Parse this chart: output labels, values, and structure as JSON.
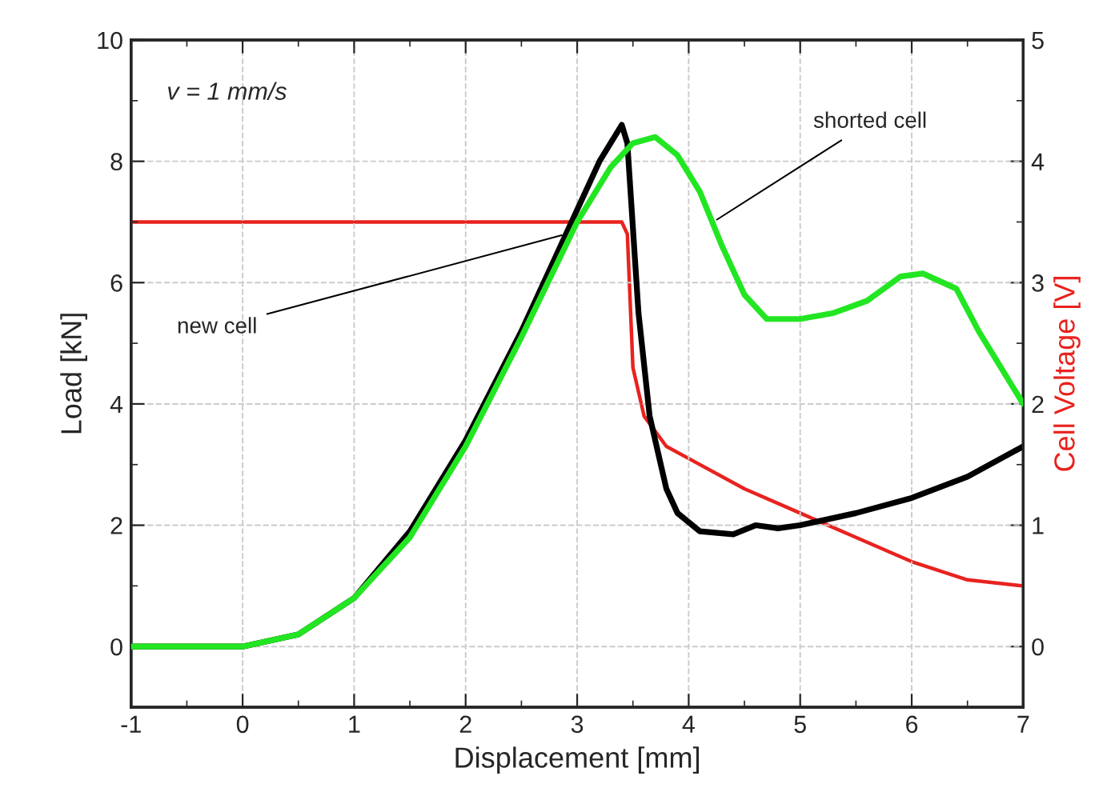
{
  "chart_data": {
    "type": "line",
    "xlabel": "Displacement [mm]",
    "ylabel": "Load [kN]",
    "y2label": "Cell Voltage [V]",
    "xlim": [
      -1,
      7
    ],
    "xticks": [
      -1,
      0,
      1,
      2,
      3,
      4,
      5,
      6,
      7
    ],
    "ylim": [
      -1,
      10
    ],
    "yticks": [
      0,
      2,
      4,
      6,
      8,
      10
    ],
    "y2lim": [
      -0.5,
      5
    ],
    "y2ticks": [
      0,
      1,
      2,
      3,
      4,
      5
    ],
    "grid": true,
    "marker": "none",
    "line_style": "solid",
    "annotations": [
      "v = 1 mm/s",
      {
        "text": "new cell",
        "x": 2.9,
        "y": 6.8
      },
      {
        "text": "shorted cell",
        "x": 4.22,
        "y": 7.0
      }
    ],
    "series": [
      {
        "color": "#000000",
        "x": [
          -1,
          0,
          0.5,
          1,
          1.5,
          2,
          2.5,
          3,
          3.2,
          3.4,
          3.45,
          3.55,
          3.65,
          3.8,
          3.9,
          4.1,
          4.4,
          4.6,
          4.8,
          5.0,
          5.5,
          6.0,
          6.5,
          7.0
        ],
        "values": [
          0,
          0,
          0.2,
          0.8,
          1.9,
          3.4,
          5.2,
          7.2,
          8.0,
          8.6,
          8.3,
          5.5,
          3.8,
          2.6,
          2.2,
          1.9,
          1.85,
          2.0,
          1.95,
          2.0,
          2.2,
          2.45,
          2.8,
          3.3
        ]
      },
      {
        "color": "#22e622",
        "x": [
          -1,
          0,
          0.5,
          1,
          1.5,
          2,
          2.5,
          3,
          3.3,
          3.5,
          3.7,
          3.9,
          4.1,
          4.3,
          4.5,
          4.7,
          5.0,
          5.3,
          5.6,
          5.9,
          6.1,
          6.4,
          6.6,
          6.8,
          7.0
        ],
        "values": [
          0,
          0,
          0.2,
          0.8,
          1.8,
          3.3,
          5.1,
          7.0,
          7.9,
          8.3,
          8.4,
          8.1,
          7.5,
          6.6,
          5.8,
          5.4,
          5.4,
          5.5,
          5.7,
          6.1,
          6.15,
          5.9,
          5.2,
          4.6,
          4.0
        ]
      },
      {
        "color": "#e8231f",
        "axis": "y2",
        "x": [
          -1,
          3.4,
          3.45,
          3.5,
          3.6,
          3.8,
          4.0,
          4.5,
          5.0,
          5.5,
          6.0,
          6.5,
          7.0
        ],
        "values": [
          3.5,
          3.5,
          3.4,
          2.3,
          1.9,
          1.65,
          1.55,
          1.3,
          1.1,
          0.9,
          0.7,
          0.55,
          0.5
        ]
      }
    ]
  }
}
